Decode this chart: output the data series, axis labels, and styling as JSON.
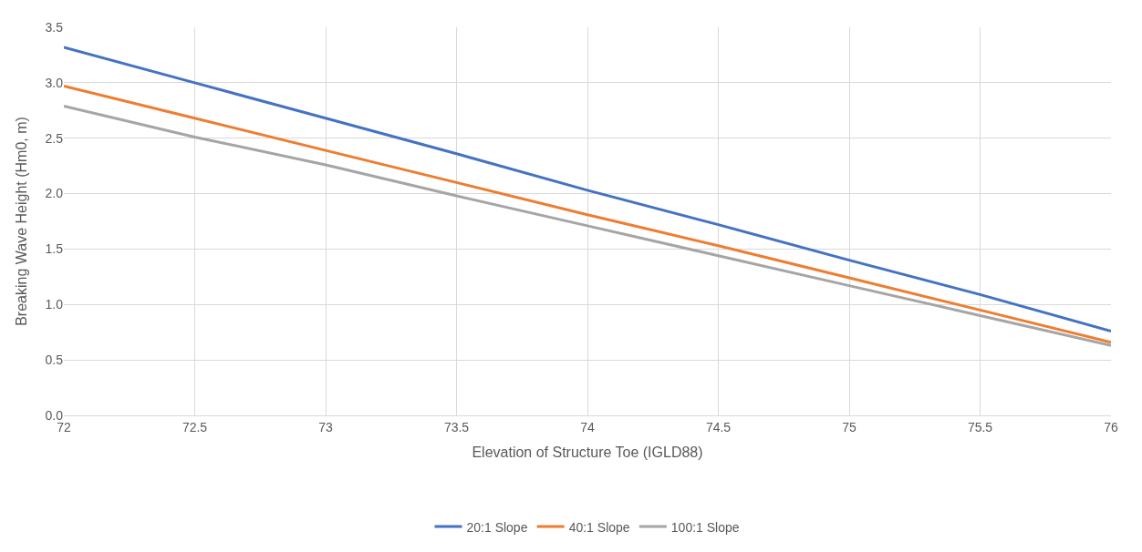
{
  "chart_data": {
    "type": "line",
    "xlabel": "Elevation of Structure Toe (IGLD88)",
    "ylabel": "Breaking Wave Height (Hm0, m)",
    "x": [
      72,
      72.5,
      73,
      73.5,
      74,
      74.5,
      75,
      75.5,
      76
    ],
    "series": [
      {
        "name": "20:1 Slope",
        "color": "#4472c4",
        "values": [
          3.32,
          3.0,
          2.68,
          2.36,
          2.03,
          1.72,
          1.4,
          1.09,
          0.76
        ]
      },
      {
        "name": "40:1 Slope",
        "color": "#ed7d31",
        "values": [
          2.97,
          2.68,
          2.39,
          2.1,
          1.81,
          1.53,
          1.24,
          0.95,
          0.66
        ]
      },
      {
        "name": "100:1 Slope",
        "color": "#a5a5a5",
        "values": [
          2.79,
          2.51,
          2.26,
          1.98,
          1.71,
          1.44,
          1.17,
          0.9,
          0.63
        ]
      }
    ],
    "xlim": [
      72,
      76
    ],
    "xticks": [
      72,
      72.5,
      73,
      73.5,
      74,
      74.5,
      75,
      75.5,
      76
    ],
    "ylim": [
      0,
      3.5
    ],
    "yticks": [
      {
        "value": 0,
        "label": "0.0"
      },
      {
        "value": 0.5,
        "label": "0.5"
      },
      {
        "value": 1,
        "label": "1.0"
      },
      {
        "value": 1.5,
        "label": "1.5"
      },
      {
        "value": 2,
        "label": "2.0"
      },
      {
        "value": 2.5,
        "label": "2.5"
      },
      {
        "value": 3,
        "label": "3.0"
      },
      {
        "value": 3.5,
        "label": "3.5"
      }
    ],
    "grid": true,
    "legend": "bottom",
    "marker": "none",
    "line_style": "solid"
  }
}
